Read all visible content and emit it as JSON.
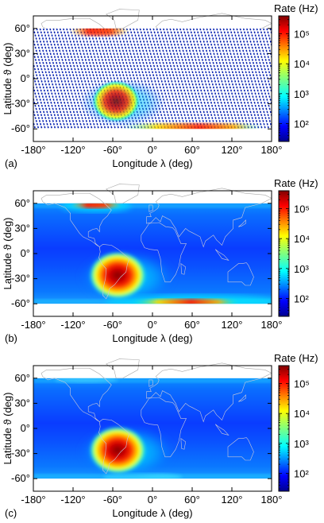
{
  "chart_data": [
    {
      "type": "heatmap",
      "panel_label": "(a)",
      "style": "track",
      "xlabel": "Longitude λ (deg)",
      "ylabel": "Latitude ϑ (deg)",
      "colorbar_label": "Rate (Hz)",
      "xlim": [
        -180,
        180
      ],
      "ylim": [
        -75,
        75
      ],
      "xticks": [
        "-180°",
        "-120°",
        "-60°",
        "0°",
        "60°",
        "120°",
        "180°"
      ],
      "yticks": [
        "60°",
        "30°",
        "0°",
        "-30°",
        "-60°"
      ],
      "colorbar_ticks": [
        "10²",
        "10³",
        "10⁴",
        "10⁵"
      ],
      "data_lat_range": [
        -60,
        60
      ],
      "saa_center": [
        -55,
        -25
      ],
      "saa_peak_rate_hz": 300000
    },
    {
      "type": "heatmap",
      "panel_label": "(b)",
      "style": "map",
      "xlabel": "Longitude λ (deg)",
      "ylabel": "Latitude ϑ (deg)",
      "colorbar_label": "Rate (Hz)",
      "xlim": [
        -180,
        180
      ],
      "ylim": [
        -75,
        75
      ],
      "xticks": [
        "-180°",
        "-120°",
        "-60°",
        "0°",
        "60°",
        "120°",
        "180°"
      ],
      "yticks": [
        "60°",
        "30°",
        "0°",
        "-30°",
        "-60°"
      ],
      "colorbar_ticks": [
        "10²",
        "10³",
        "10⁴",
        "10⁵"
      ],
      "data_lat_range": [
        -60,
        60
      ],
      "saa_center": [
        -55,
        -25
      ],
      "saa_peak_rate_hz": 300000
    },
    {
      "type": "heatmap",
      "panel_label": "(c)",
      "style": "map",
      "xlabel": "Longitude λ (deg)",
      "ylabel": "Latitude ϑ (deg)",
      "colorbar_label": "Rate (Hz)",
      "xlim": [
        -180,
        180
      ],
      "ylim": [
        -75,
        75
      ],
      "xticks": [
        "-180°",
        "-120°",
        "-60°",
        "0°",
        "60°",
        "120°",
        "180°"
      ],
      "yticks": [
        "60°",
        "30°",
        "0°",
        "-30°",
        "-60°"
      ],
      "colorbar_ticks": [
        "10²",
        "10³",
        "10⁴",
        "10⁵"
      ],
      "data_lat_range": [
        -60,
        60
      ],
      "saa_center": [
        -55,
        -25
      ],
      "saa_peak_rate_hz": 300000
    }
  ]
}
